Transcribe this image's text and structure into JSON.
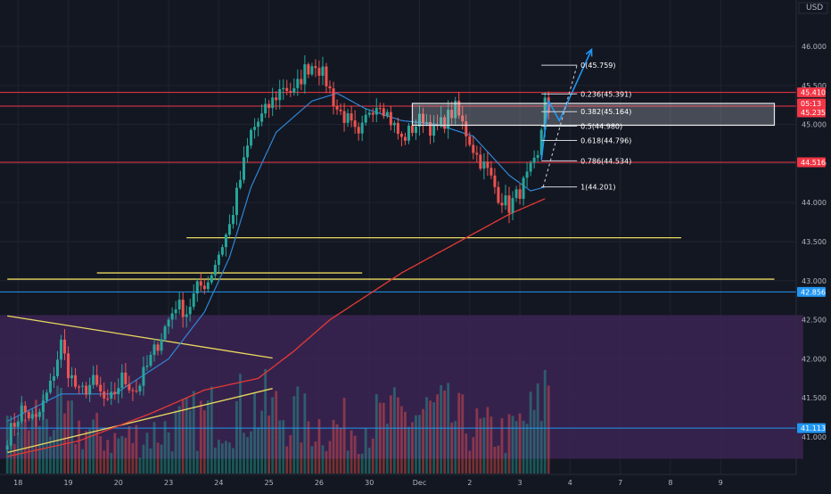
{
  "currency": "USD",
  "colors": {
    "background": "#131722",
    "grid": "#1f2430",
    "up": "#26a69a",
    "down": "#ef5350",
    "yellow": "#e9d95f",
    "blue": "#2196f3",
    "red_line": "#f23645",
    "ma_blue": "#2f86d6",
    "ma_red": "#e53935",
    "purple": "#3c2453",
    "fib": "#d1d4dc",
    "tag_red": "#f23645",
    "tag_blue": "#2196f3"
  },
  "chart_data": {
    "type": "candlestick",
    "y_ticks": [
      "46.000",
      "45.500",
      "45.000",
      "44.500",
      "44.000",
      "43.500",
      "43.000",
      "42.500",
      "42.000",
      "41.500",
      "41.000"
    ],
    "y_tick_values": [
      46.0,
      45.5,
      45.0,
      44.5,
      44.0,
      43.5,
      43.0,
      42.5,
      42.0,
      41.5,
      41.0
    ],
    "x_ticks": [
      {
        "label": "18",
        "bar": 3
      },
      {
        "label": "19",
        "bar": 17
      },
      {
        "label": "20",
        "bar": 31
      },
      {
        "label": "23",
        "bar": 45
      },
      {
        "label": "24",
        "bar": 59
      },
      {
        "label": "25",
        "bar": 73
      },
      {
        "label": "26",
        "bar": 87
      },
      {
        "label": "30",
        "bar": 101
      },
      {
        "label": "Dec",
        "bar": 115
      },
      {
        "label": "2",
        "bar": 129
      },
      {
        "label": "3",
        "bar": 143
      },
      {
        "label": "4",
        "bar": 157
      },
      {
        "label": "7",
        "bar": 171
      },
      {
        "label": "8",
        "bar": 185
      },
      {
        "label": "9",
        "bar": 199
      }
    ],
    "ylim": [
      40.72,
      46.3
    ],
    "candle_keypoints": [
      [
        0,
        41.0
      ],
      [
        4,
        41.35
      ],
      [
        8,
        41.2
      ],
      [
        12,
        41.65
      ],
      [
        15,
        42.2
      ],
      [
        17,
        41.85
      ],
      [
        20,
        41.55
      ],
      [
        24,
        41.7
      ],
      [
        28,
        41.4
      ],
      [
        32,
        41.75
      ],
      [
        36,
        41.6
      ],
      [
        40,
        42.0
      ],
      [
        44,
        42.4
      ],
      [
        47,
        42.7
      ],
      [
        50,
        42.6
      ],
      [
        53,
        42.9
      ],
      [
        56,
        43.0
      ],
      [
        59,
        43.35
      ],
      [
        62,
        43.7
      ],
      [
        65,
        44.3
      ],
      [
        68,
        44.9
      ],
      [
        71,
        45.1
      ],
      [
        74,
        45.3
      ],
      [
        77,
        45.5
      ],
      [
        80,
        45.4
      ],
      [
        83,
        45.7
      ],
      [
        86,
        45.8
      ],
      [
        89,
        45.55
      ],
      [
        92,
        45.2
      ],
      [
        95,
        45.05
      ],
      [
        98,
        44.8
      ],
      [
        101,
        45.2
      ],
      [
        104,
        45.3
      ],
      [
        107,
        45.05
      ],
      [
        110,
        44.8
      ],
      [
        113,
        44.95
      ],
      [
        116,
        45.1
      ],
      [
        119,
        44.9
      ],
      [
        122,
        45.05
      ],
      [
        125,
        45.2
      ],
      [
        128,
        44.9
      ],
      [
        131,
        44.6
      ],
      [
        134,
        44.4
      ],
      [
        137,
        44.1
      ],
      [
        140,
        43.95
      ],
      [
        143,
        44.15
      ],
      [
        146,
        44.4
      ],
      [
        148,
        44.55
      ],
      [
        149,
        44.95
      ],
      [
        150,
        45.4
      ],
      [
        151,
        45.1
      ]
    ],
    "volume_keypoints": [
      [
        0,
        0.35
      ],
      [
        10,
        0.55
      ],
      [
        20,
        0.4
      ],
      [
        30,
        0.3
      ],
      [
        40,
        0.35
      ],
      [
        50,
        0.45
      ],
      [
        60,
        0.55
      ],
      [
        70,
        0.6
      ],
      [
        80,
        0.5
      ],
      [
        90,
        0.4
      ],
      [
        100,
        0.45
      ],
      [
        110,
        0.5
      ],
      [
        120,
        0.55
      ],
      [
        130,
        0.4
      ],
      [
        140,
        0.35
      ],
      [
        148,
        0.55
      ],
      [
        151,
        0.85
      ]
    ],
    "fib_levels": [
      {
        "label": "0(45.759)",
        "value": 45.759
      },
      {
        "label": "0.236(45.391)",
        "value": 45.391
      },
      {
        "label": "0.382(45.164)",
        "value": 45.164
      },
      {
        "label": "0.5(44.980)",
        "value": 44.98
      },
      {
        "label": "0.618(44.796)",
        "value": 44.796
      },
      {
        "label": "0.786(44.534)",
        "value": 44.534
      },
      {
        "label": "1(44.201)",
        "value": 44.201
      }
    ],
    "fib_anchor_bar": 149,
    "rectangle": {
      "from_bar": 113,
      "to_bar": 214,
      "top": 45.27,
      "bottom": 44.99
    },
    "horizontal_lines": [
      {
        "value": 45.41,
        "color": "red",
        "style": "solid"
      },
      {
        "value": 45.235,
        "color": "red",
        "style": "solid"
      },
      {
        "value": 44.516,
        "color": "red",
        "style": "solid"
      },
      {
        "value": 42.856,
        "color": "blue",
        "style": "solid"
      },
      {
        "value": 41.113,
        "color": "blue",
        "style": "solid"
      }
    ],
    "yellow_segments": [
      {
        "from": [
          50,
          43.55
        ],
        "to": [
          188,
          43.55
        ]
      },
      {
        "from": [
          25,
          43.1
        ],
        "to": [
          99,
          43.1
        ]
      },
      {
        "from": [
          0,
          43.02
        ],
        "to": [
          214,
          43.02
        ]
      },
      {
        "from": [
          0,
          42.55
        ],
        "to": [
          74,
          42.01
        ]
      },
      {
        "from": [
          0,
          40.8
        ],
        "to": [
          74,
          41.62
        ]
      }
    ],
    "purple_zone": {
      "top": 42.56,
      "bottom": 40.72,
      "to_bar": 222
    },
    "ma_fast_keypoints": [
      [
        0,
        41.2
      ],
      [
        15,
        41.55
      ],
      [
        30,
        41.55
      ],
      [
        45,
        42.0
      ],
      [
        55,
        42.6
      ],
      [
        62,
        43.3
      ],
      [
        68,
        44.2
      ],
      [
        75,
        44.9
      ],
      [
        85,
        45.3
      ],
      [
        92,
        45.4
      ],
      [
        100,
        45.2
      ],
      [
        110,
        45.05
      ],
      [
        120,
        45.0
      ],
      [
        130,
        44.85
      ],
      [
        140,
        44.35
      ],
      [
        146,
        44.15
      ],
      [
        150,
        44.2
      ]
    ],
    "ma_slow_keypoints": [
      [
        0,
        40.75
      ],
      [
        20,
        40.95
      ],
      [
        40,
        41.3
      ],
      [
        55,
        41.6
      ],
      [
        70,
        41.75
      ],
      [
        80,
        42.1
      ],
      [
        90,
        42.5
      ],
      [
        100,
        42.8
      ],
      [
        110,
        43.1
      ],
      [
        120,
        43.35
      ],
      [
        130,
        43.6
      ],
      [
        140,
        43.85
      ],
      [
        150,
        44.05
      ]
    ],
    "projection": [
      [
        149,
        44.55
      ],
      [
        151,
        45.3
      ],
      [
        154,
        45.05
      ],
      [
        163,
        45.96
      ]
    ],
    "price_tags": [
      {
        "text": "45.410",
        "value": 45.41,
        "color": "red",
        "offset": 0
      },
      {
        "text": "05:13",
        "value": 45.27,
        "color": "red",
        "offset": 0
      },
      {
        "text": "45.235",
        "value": 45.235,
        "color": "red",
        "offset": 7
      },
      {
        "text": "44.516",
        "value": 44.516,
        "color": "red",
        "offset": 0
      },
      {
        "text": "42.856",
        "value": 42.856,
        "color": "blue",
        "offset": 0
      },
      {
        "text": "41.113",
        "value": 41.113,
        "color": "blue",
        "offset": 0
      }
    ]
  }
}
